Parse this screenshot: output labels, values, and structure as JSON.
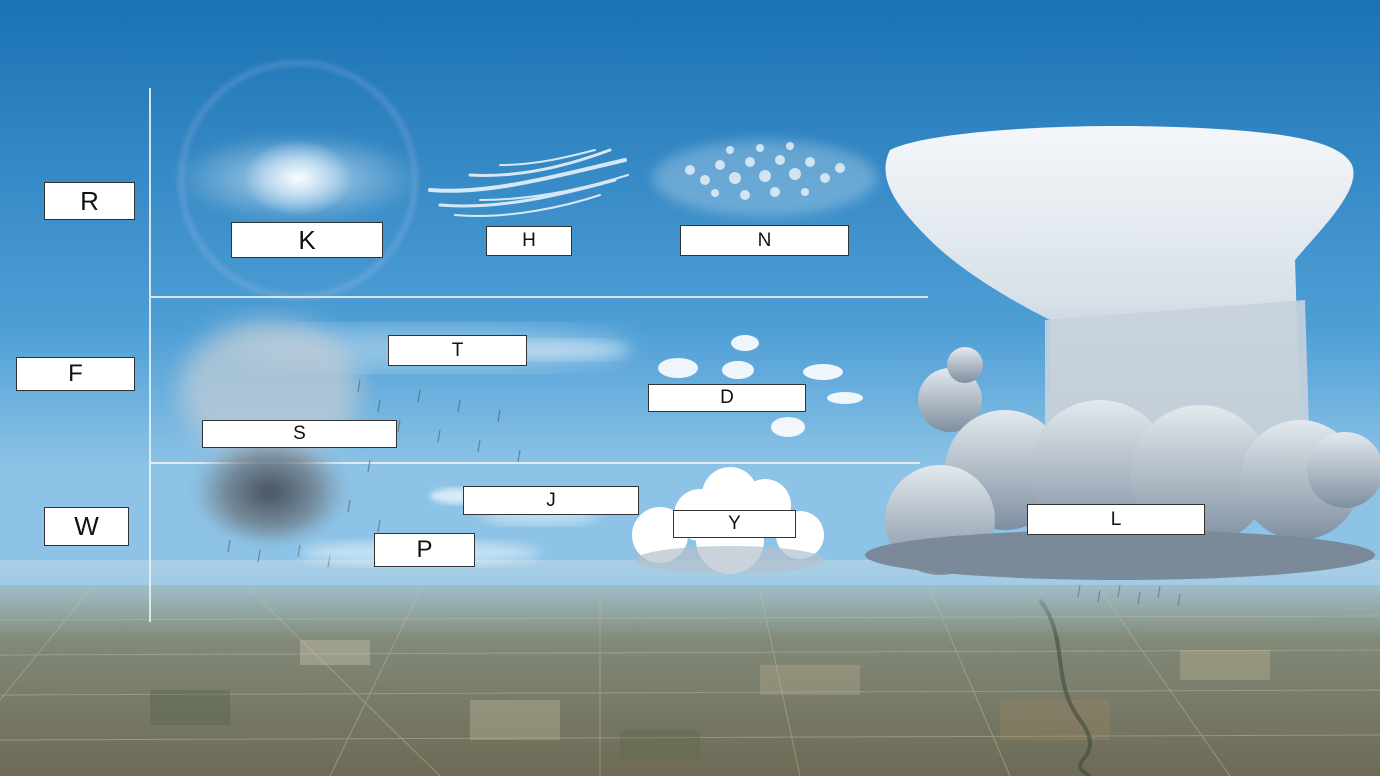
{
  "colors": {
    "sky_top": "#1a72b3",
    "sky_bottom": "#8cc3e6",
    "guide_line": "#e6f0f7",
    "label_bg": "#ffffff",
    "label_border": "#333333"
  },
  "levels": {
    "high": "R",
    "middle": "F",
    "low": "W"
  },
  "clouds": {
    "halo": "K",
    "wisps": "H",
    "ripples": "N",
    "layer": "T",
    "rain_cloud": "S",
    "puffs": "D",
    "low_layer": "J",
    "low_base": "P",
    "cumulus": "Y",
    "thunderhead": "L"
  }
}
